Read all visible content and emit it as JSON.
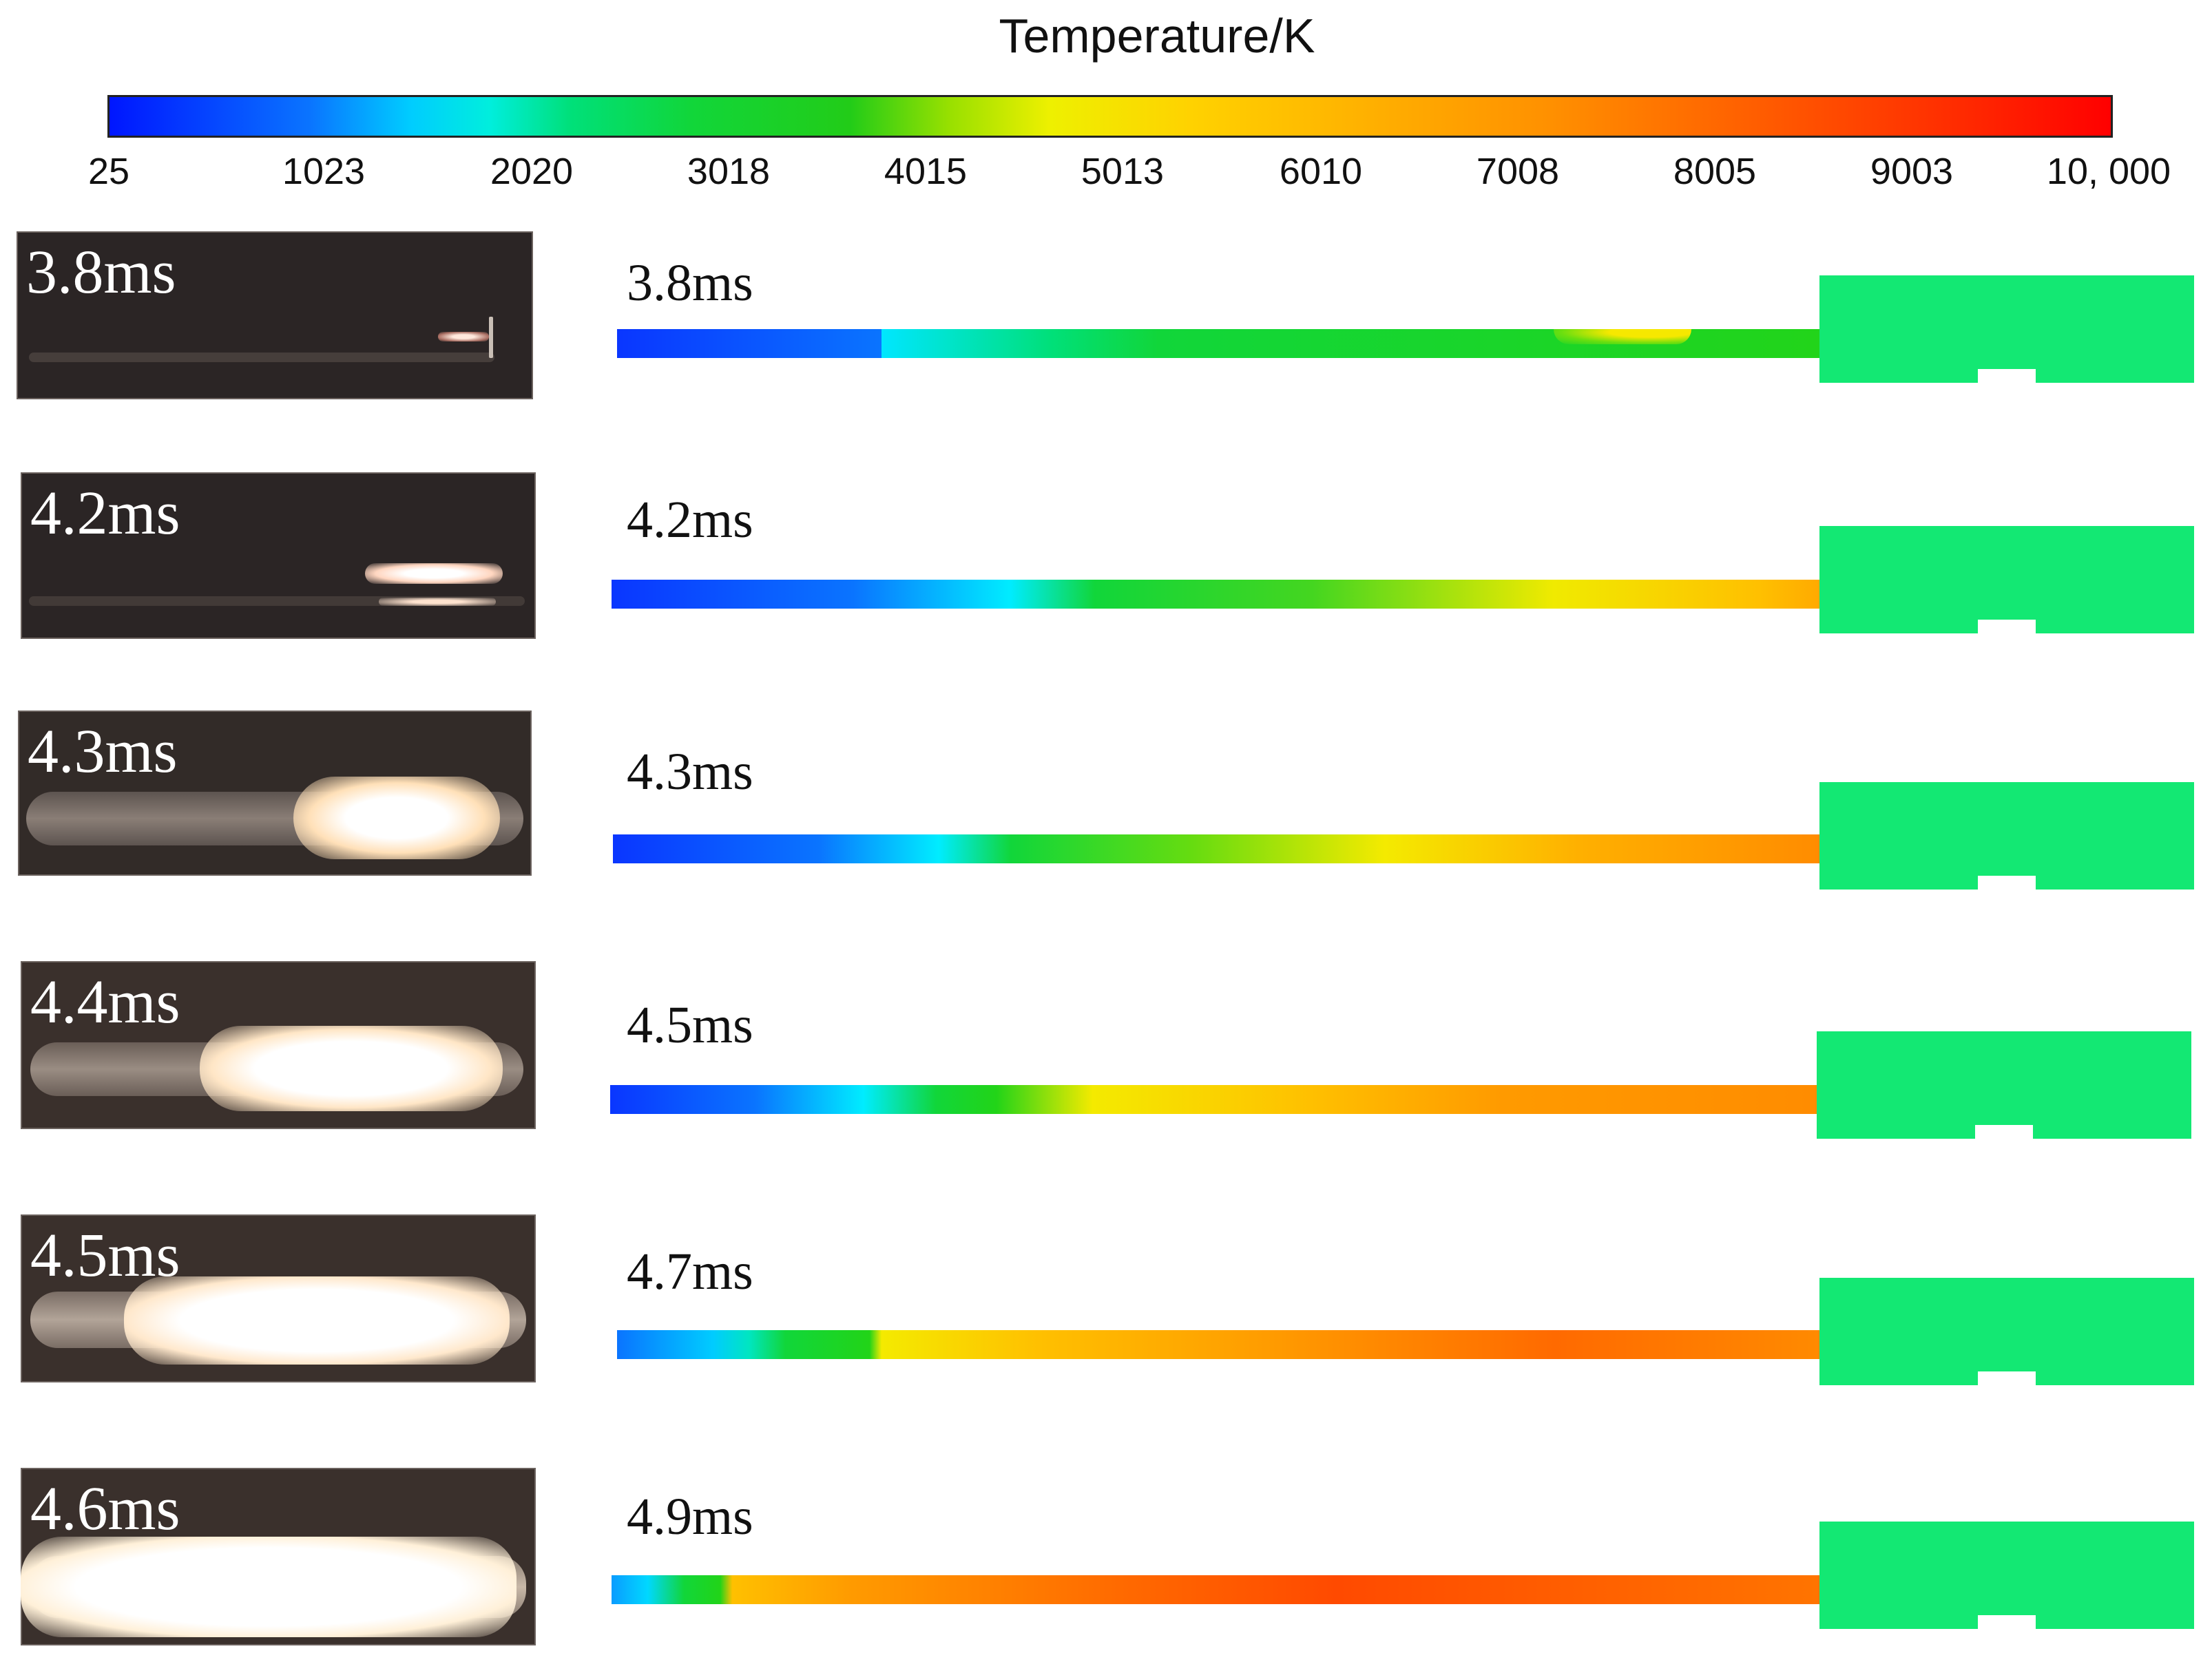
{
  "colorbar": {
    "title": "Temperature/K",
    "ticks": [
      "25",
      "1023",
      "2020",
      "3018",
      "4015",
      "5013",
      "6010",
      "7008",
      "8005",
      "9003",
      "10, 000"
    ]
  },
  "photos": [
    {
      "label": "3.8ms"
    },
    {
      "label": "4.2ms"
    },
    {
      "label": "4.3ms"
    },
    {
      "label": "4.4ms"
    },
    {
      "label": "4.5ms"
    },
    {
      "label": "4.6ms"
    }
  ],
  "simulations": [
    {
      "label": "3.8ms"
    },
    {
      "label": "4.2ms"
    },
    {
      "label": "4.3ms"
    },
    {
      "label": "4.5ms"
    },
    {
      "label": "4.7ms"
    },
    {
      "label": "4.9ms"
    }
  ],
  "colors": {
    "background": "#ffffff",
    "photo_background": "#2b2525",
    "domain_green": "#13e873",
    "scale_min": "#0016ff",
    "scale_max": "#ff0000"
  }
}
